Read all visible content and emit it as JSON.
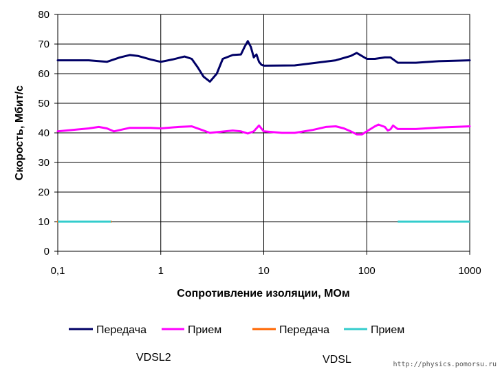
{
  "chart_data": {
    "type": "line",
    "title": "",
    "xlabel": "Сопротивление изоляции, МОм",
    "ylabel": "Скорость, Мбит/с",
    "xscale": "log",
    "xlim": [
      0.1,
      1000
    ],
    "ylim": [
      0,
      80
    ],
    "x_tick_labels": [
      "0,1",
      "1",
      "10",
      "100",
      "1000"
    ],
    "x_ticks": [
      0.1,
      1,
      10,
      100,
      1000
    ],
    "y_ticks": [
      0,
      10,
      20,
      30,
      40,
      50,
      60,
      70,
      80
    ],
    "grid": true,
    "legend": "bottom",
    "series": [
      {
        "name": "Передача",
        "color": "#000066",
        "x": [
          0.1,
          0.2,
          0.3,
          0.4,
          0.5,
          0.6,
          0.8,
          1,
          1.3,
          1.7,
          2,
          2.3,
          2.6,
          3,
          3.5,
          4,
          5,
          6,
          6.5,
          7,
          7.5,
          8,
          8.5,
          9,
          9.5,
          10,
          20,
          50,
          70,
          80,
          100,
          120,
          150,
          170,
          200,
          300,
          500,
          1000
        ],
        "y": [
          64.5,
          64.5,
          64.0,
          65.5,
          66.3,
          66.0,
          64.8,
          64.0,
          64.8,
          65.8,
          65.0,
          62.0,
          59.0,
          57.3,
          60.0,
          65.0,
          66.3,
          66.5,
          69.0,
          71.0,
          69.0,
          65.5,
          66.5,
          64.0,
          63.0,
          62.7,
          62.8,
          64.5,
          66.0,
          67.0,
          65.0,
          65.0,
          65.5,
          65.5,
          63.7,
          63.7,
          64.2,
          64.5
        ]
      },
      {
        "name": "Прием",
        "color": "#ff00ff",
        "x": [
          0.1,
          0.2,
          0.25,
          0.3,
          0.35,
          0.5,
          0.8,
          1,
          1.5,
          2,
          2.5,
          3,
          5,
          6,
          7,
          8,
          9,
          10,
          15,
          20,
          30,
          40,
          50,
          60,
          70,
          80,
          90,
          100,
          120,
          130,
          150,
          160,
          170,
          180,
          200,
          300,
          500,
          1000
        ],
        "y": [
          40.5,
          41.5,
          42.0,
          41.5,
          40.5,
          41.7,
          41.7,
          41.5,
          42.0,
          42.2,
          41.0,
          40.0,
          40.8,
          40.5,
          39.8,
          40.5,
          42.5,
          40.5,
          40.0,
          40.0,
          41.0,
          42.0,
          42.2,
          41.5,
          40.5,
          39.5,
          39.5,
          40.5,
          42.2,
          42.8,
          42.0,
          40.8,
          41.2,
          42.5,
          41.3,
          41.3,
          41.8,
          42.2
        ]
      },
      {
        "name": "Передача",
        "color": "#ff6600",
        "x": [
          0.1,
          0.33
        ],
        "y": [
          10,
          10
        ]
      },
      {
        "name": "Прием",
        "color": "#33cccc",
        "x": [
          0.1,
          0.33,
          200,
          1000
        ],
        "y": [
          10,
          10,
          10,
          10
        ]
      }
    ],
    "group_labels": [
      "VDSL2",
      "VDSL"
    ]
  },
  "watermark": "http://physics.pomorsu.ru"
}
